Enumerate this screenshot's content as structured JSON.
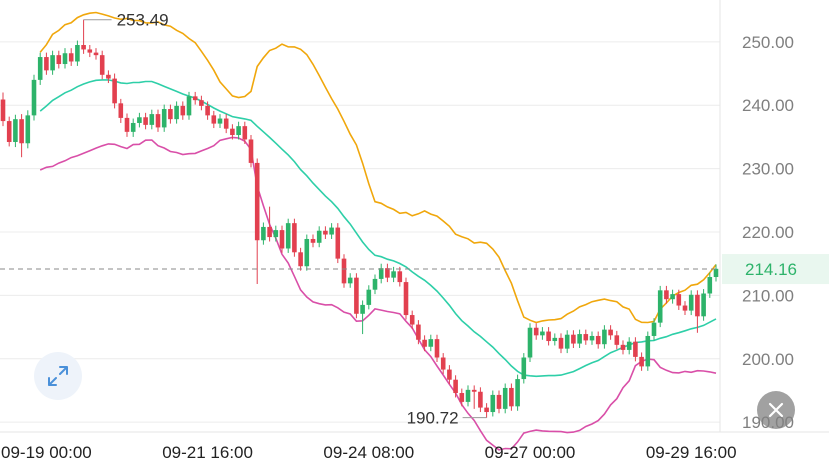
{
  "chart_data": {
    "type": "candlestick",
    "y_axis": {
      "range": [
        186.4,
        256.6
      ],
      "ticks": [
        {
          "value": 250,
          "label": "250.00"
        },
        {
          "value": 240,
          "label": "240.00"
        },
        {
          "value": 230,
          "label": "230.00"
        },
        {
          "value": 220,
          "label": "220.00"
        },
        {
          "value": 210,
          "label": "210.00"
        },
        {
          "value": 200,
          "label": "200.00"
        },
        {
          "value": 190,
          "label": "190.00"
        }
      ]
    },
    "x_axis": {
      "ticks": [
        {
          "index": 7,
          "label": "09-19 00:00"
        },
        {
          "index": 33,
          "label": "09-21 16:00"
        },
        {
          "index": 59,
          "label": "09-24 08:00"
        },
        {
          "index": 85,
          "label": "09-27 00:00"
        },
        {
          "index": 111,
          "label": "09-29 16:00"
        }
      ]
    },
    "annotations": {
      "high": {
        "value": 253.49,
        "label": "253.49",
        "index": 13
      },
      "low": {
        "value": 190.72,
        "label": "190.72",
        "index": 78
      }
    },
    "last_price": {
      "value": 214.16,
      "label": "214.16"
    },
    "colors": {
      "up": "#2db36a",
      "down": "#e2404f",
      "upper_band": "#f0a70c",
      "middle_band": "#2ecfa8",
      "lower_band": "#d94fa8",
      "last_price_label": "#2db36a",
      "last_price_bg": "#e9f7ef"
    },
    "candles": [
      [
        240.9,
        237.5,
        242.0,
        236.7
      ],
      [
        237.5,
        234.2,
        238.2,
        233.5
      ],
      [
        234.2,
        237.8,
        238.5,
        233.4
      ],
      [
        237.8,
        234.0,
        238.6,
        231.8
      ],
      [
        234.0,
        238.4,
        239.2,
        233.2
      ],
      [
        238.4,
        244.0,
        244.8,
        237.6
      ],
      [
        244.0,
        247.6,
        248.3,
        243.2
      ],
      [
        247.6,
        245.5,
        248.3,
        244.8
      ],
      [
        245.5,
        247.9,
        248.6,
        244.8
      ],
      [
        247.9,
        246.5,
        248.6,
        245.8
      ],
      [
        246.5,
        248.2,
        249.0,
        245.8
      ],
      [
        248.2,
        246.9,
        249.0,
        246.2
      ],
      [
        246.9,
        249.5,
        250.2,
        246.2
      ],
      [
        249.5,
        248.8,
        253.5,
        248.1
      ],
      [
        248.8,
        248.3,
        249.5,
        247.6
      ],
      [
        248.3,
        247.9,
        249.0,
        247.2
      ],
      [
        247.9,
        244.8,
        248.6,
        244.1
      ],
      [
        244.8,
        244.2,
        245.5,
        243.5
      ],
      [
        244.2,
        240.3,
        245.0,
        239.5
      ],
      [
        240.3,
        238.0,
        241.0,
        237.2
      ],
      [
        238.0,
        235.8,
        238.7,
        235.0
      ],
      [
        235.8,
        237.2,
        237.9,
        235.0
      ],
      [
        237.2,
        238.1,
        238.8,
        236.5
      ],
      [
        238.1,
        236.9,
        238.8,
        236.2
      ],
      [
        236.9,
        238.6,
        239.3,
        236.2
      ],
      [
        238.6,
        236.5,
        239.3,
        235.8
      ],
      [
        236.5,
        239.4,
        240.1,
        235.8
      ],
      [
        239.4,
        237.8,
        240.1,
        237.1
      ],
      [
        237.8,
        239.9,
        240.6,
        237.1
      ],
      [
        239.9,
        238.4,
        240.6,
        237.7
      ],
      [
        238.4,
        241.4,
        242.1,
        237.7
      ],
      [
        241.4,
        240.8,
        242.1,
        240.1
      ],
      [
        240.8,
        239.9,
        241.5,
        239.2
      ],
      [
        239.9,
        238.4,
        240.6,
        237.7
      ],
      [
        238.4,
        237.1,
        239.1,
        236.4
      ],
      [
        237.1,
        237.9,
        238.6,
        236.4
      ],
      [
        237.9,
        236.3,
        238.6,
        235.6
      ],
      [
        236.3,
        235.3,
        237.0,
        234.6
      ],
      [
        235.3,
        236.7,
        237.4,
        234.6
      ],
      [
        236.7,
        234.6,
        237.4,
        233.9
      ],
      [
        234.6,
        230.9,
        235.3,
        230.2
      ],
      [
        230.9,
        218.7,
        231.6,
        211.8
      ],
      [
        218.7,
        220.8,
        221.5,
        218.0
      ],
      [
        220.8,
        219.2,
        224.0,
        218.5
      ],
      [
        219.2,
        220.3,
        221.0,
        218.5
      ],
      [
        220.3,
        217.4,
        221.0,
        216.7
      ],
      [
        217.4,
        221.4,
        222.1,
        216.7
      ],
      [
        221.4,
        216.8,
        222.1,
        216.1
      ],
      [
        216.8,
        214.6,
        217.5,
        213.9
      ],
      [
        214.6,
        218.9,
        219.6,
        213.9
      ],
      [
        218.9,
        218.3,
        219.6,
        217.6
      ],
      [
        218.3,
        220.2,
        220.9,
        217.6
      ],
      [
        220.2,
        219.6,
        220.9,
        218.9
      ],
      [
        219.6,
        220.7,
        221.4,
        218.9
      ],
      [
        220.7,
        215.8,
        221.4,
        215.1
      ],
      [
        215.8,
        211.9,
        216.5,
        211.2
      ],
      [
        211.9,
        212.8,
        213.5,
        211.2
      ],
      [
        212.8,
        207.1,
        213.5,
        206.4
      ],
      [
        207.1,
        208.5,
        209.2,
        203.9
      ],
      [
        208.5,
        210.9,
        211.6,
        207.8
      ],
      [
        210.9,
        212.6,
        213.3,
        210.2
      ],
      [
        212.6,
        214.3,
        215.0,
        211.9
      ],
      [
        214.3,
        212.8,
        215.0,
        212.1
      ],
      [
        212.8,
        213.8,
        214.5,
        212.1
      ],
      [
        213.8,
        212.1,
        214.5,
        211.4
      ],
      [
        212.1,
        206.9,
        212.8,
        206.2
      ],
      [
        206.9,
        205.4,
        207.6,
        204.7
      ],
      [
        205.4,
        203.0,
        206.1,
        202.3
      ],
      [
        203.0,
        201.9,
        203.7,
        201.2
      ],
      [
        201.9,
        203.1,
        203.8,
        201.2
      ],
      [
        203.1,
        200.2,
        203.8,
        199.5
      ],
      [
        200.2,
        198.3,
        200.9,
        197.6
      ],
      [
        198.3,
        196.7,
        199.0,
        196.0
      ],
      [
        196.7,
        194.6,
        197.4,
        193.9
      ],
      [
        194.6,
        193.2,
        195.3,
        192.5
      ],
      [
        193.2,
        195.1,
        195.8,
        192.5
      ],
      [
        195.1,
        194.8,
        195.8,
        192.1
      ],
      [
        194.8,
        192.3,
        195.5,
        191.6
      ],
      [
        192.3,
        191.6,
        193.0,
        190.7
      ],
      [
        191.6,
        194.3,
        195.0,
        190.9
      ],
      [
        194.3,
        192.1,
        195.0,
        191.4
      ],
      [
        192.1,
        195.4,
        196.1,
        191.4
      ],
      [
        195.4,
        192.5,
        196.1,
        191.8
      ],
      [
        192.5,
        196.8,
        197.5,
        191.8
      ],
      [
        196.8,
        200.2,
        200.9,
        196.1
      ],
      [
        200.2,
        204.9,
        205.6,
        199.5
      ],
      [
        204.9,
        203.7,
        205.6,
        203.0
      ],
      [
        203.7,
        204.3,
        205.0,
        203.0
      ],
      [
        204.3,
        202.8,
        205.0,
        202.1
      ],
      [
        202.8,
        203.3,
        204.0,
        202.1
      ],
      [
        203.3,
        201.6,
        204.0,
        200.9
      ],
      [
        201.6,
        203.8,
        204.5,
        200.9
      ],
      [
        203.8,
        202.4,
        204.5,
        201.7
      ],
      [
        202.4,
        203.9,
        204.6,
        201.7
      ],
      [
        203.9,
        202.9,
        204.6,
        202.2
      ],
      [
        202.9,
        203.6,
        204.3,
        202.2
      ],
      [
        203.6,
        202.3,
        204.3,
        201.6
      ],
      [
        202.3,
        204.6,
        205.3,
        201.6
      ],
      [
        204.6,
        203.7,
        205.3,
        203.0
      ],
      [
        203.7,
        202.2,
        204.4,
        201.5
      ],
      [
        202.2,
        201.4,
        202.9,
        200.7
      ],
      [
        201.4,
        202.7,
        203.4,
        200.7
      ],
      [
        202.7,
        200.3,
        203.4,
        199.6
      ],
      [
        200.3,
        198.8,
        201.0,
        198.1
      ],
      [
        198.8,
        203.6,
        204.3,
        198.1
      ],
      [
        203.6,
        205.7,
        206.4,
        202.9
      ],
      [
        205.7,
        210.8,
        211.5,
        205.0
      ],
      [
        210.8,
        209.4,
        211.5,
        208.7
      ],
      [
        209.4,
        210.2,
        210.9,
        208.7
      ],
      [
        210.2,
        208.4,
        210.9,
        207.7
      ],
      [
        208.4,
        207.6,
        209.1,
        206.9
      ],
      [
        207.6,
        210.1,
        210.8,
        206.9
      ],
      [
        210.1,
        206.7,
        210.8,
        204.1
      ],
      [
        206.7,
        210.3,
        211.0,
        206.0
      ],
      [
        210.3,
        212.9,
        213.6,
        209.6
      ],
      [
        212.9,
        214.2,
        214.9,
        212.2
      ]
    ]
  }
}
